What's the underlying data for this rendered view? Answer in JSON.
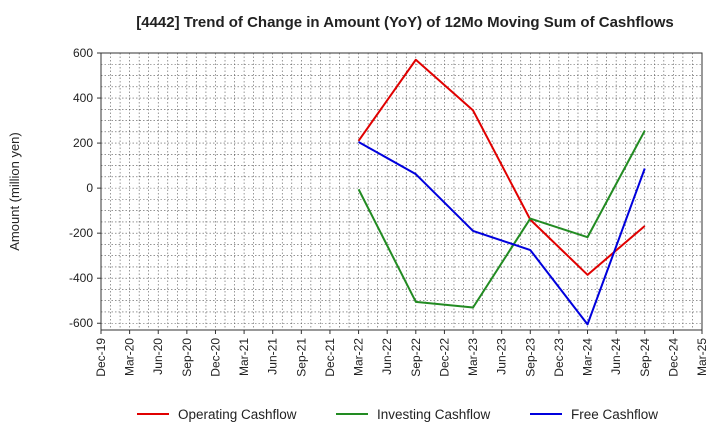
{
  "chart_data": {
    "type": "line",
    "title": "[4442]  Trend of Change in Amount (YoY) of 12Mo Moving Sum of Cashflows",
    "xlabel": "",
    "ylabel": "Amount (million yen)",
    "ylim": [
      -630,
      600
    ],
    "yticks": [
      600,
      400,
      200,
      0,
      -200,
      -400,
      -600
    ],
    "categories": [
      "Dec-19",
      "Mar-20",
      "Jun-20",
      "Sep-20",
      "Dec-20",
      "Mar-21",
      "Jun-21",
      "Sep-21",
      "Dec-21",
      "Mar-22",
      "Jun-22",
      "Sep-22",
      "Dec-22",
      "Mar-23",
      "Jun-23",
      "Sep-23",
      "Dec-23",
      "Mar-24",
      "Jun-24",
      "Sep-24",
      "Dec-24",
      "Mar-25"
    ],
    "grid": true,
    "legend_position": "bottom",
    "series": [
      {
        "name": "Operating Cashflow",
        "color": "#e00000",
        "values": [
          null,
          null,
          null,
          null,
          null,
          null,
          null,
          null,
          null,
          210,
          null,
          570,
          null,
          345,
          null,
          -140,
          null,
          -385,
          null,
          -168,
          null,
          null
        ]
      },
      {
        "name": "Investing Cashflow",
        "color": "#228B22",
        "values": [
          null,
          null,
          null,
          null,
          null,
          null,
          null,
          null,
          null,
          -5,
          null,
          -505,
          null,
          -530,
          null,
          -135,
          null,
          -218,
          null,
          255,
          null,
          null
        ]
      },
      {
        "name": "Free Cashflow",
        "color": "#0000dd",
        "values": [
          null,
          null,
          null,
          null,
          null,
          null,
          null,
          null,
          null,
          205,
          null,
          62,
          null,
          -190,
          null,
          -275,
          null,
          -605,
          null,
          87,
          null,
          null
        ]
      }
    ]
  }
}
